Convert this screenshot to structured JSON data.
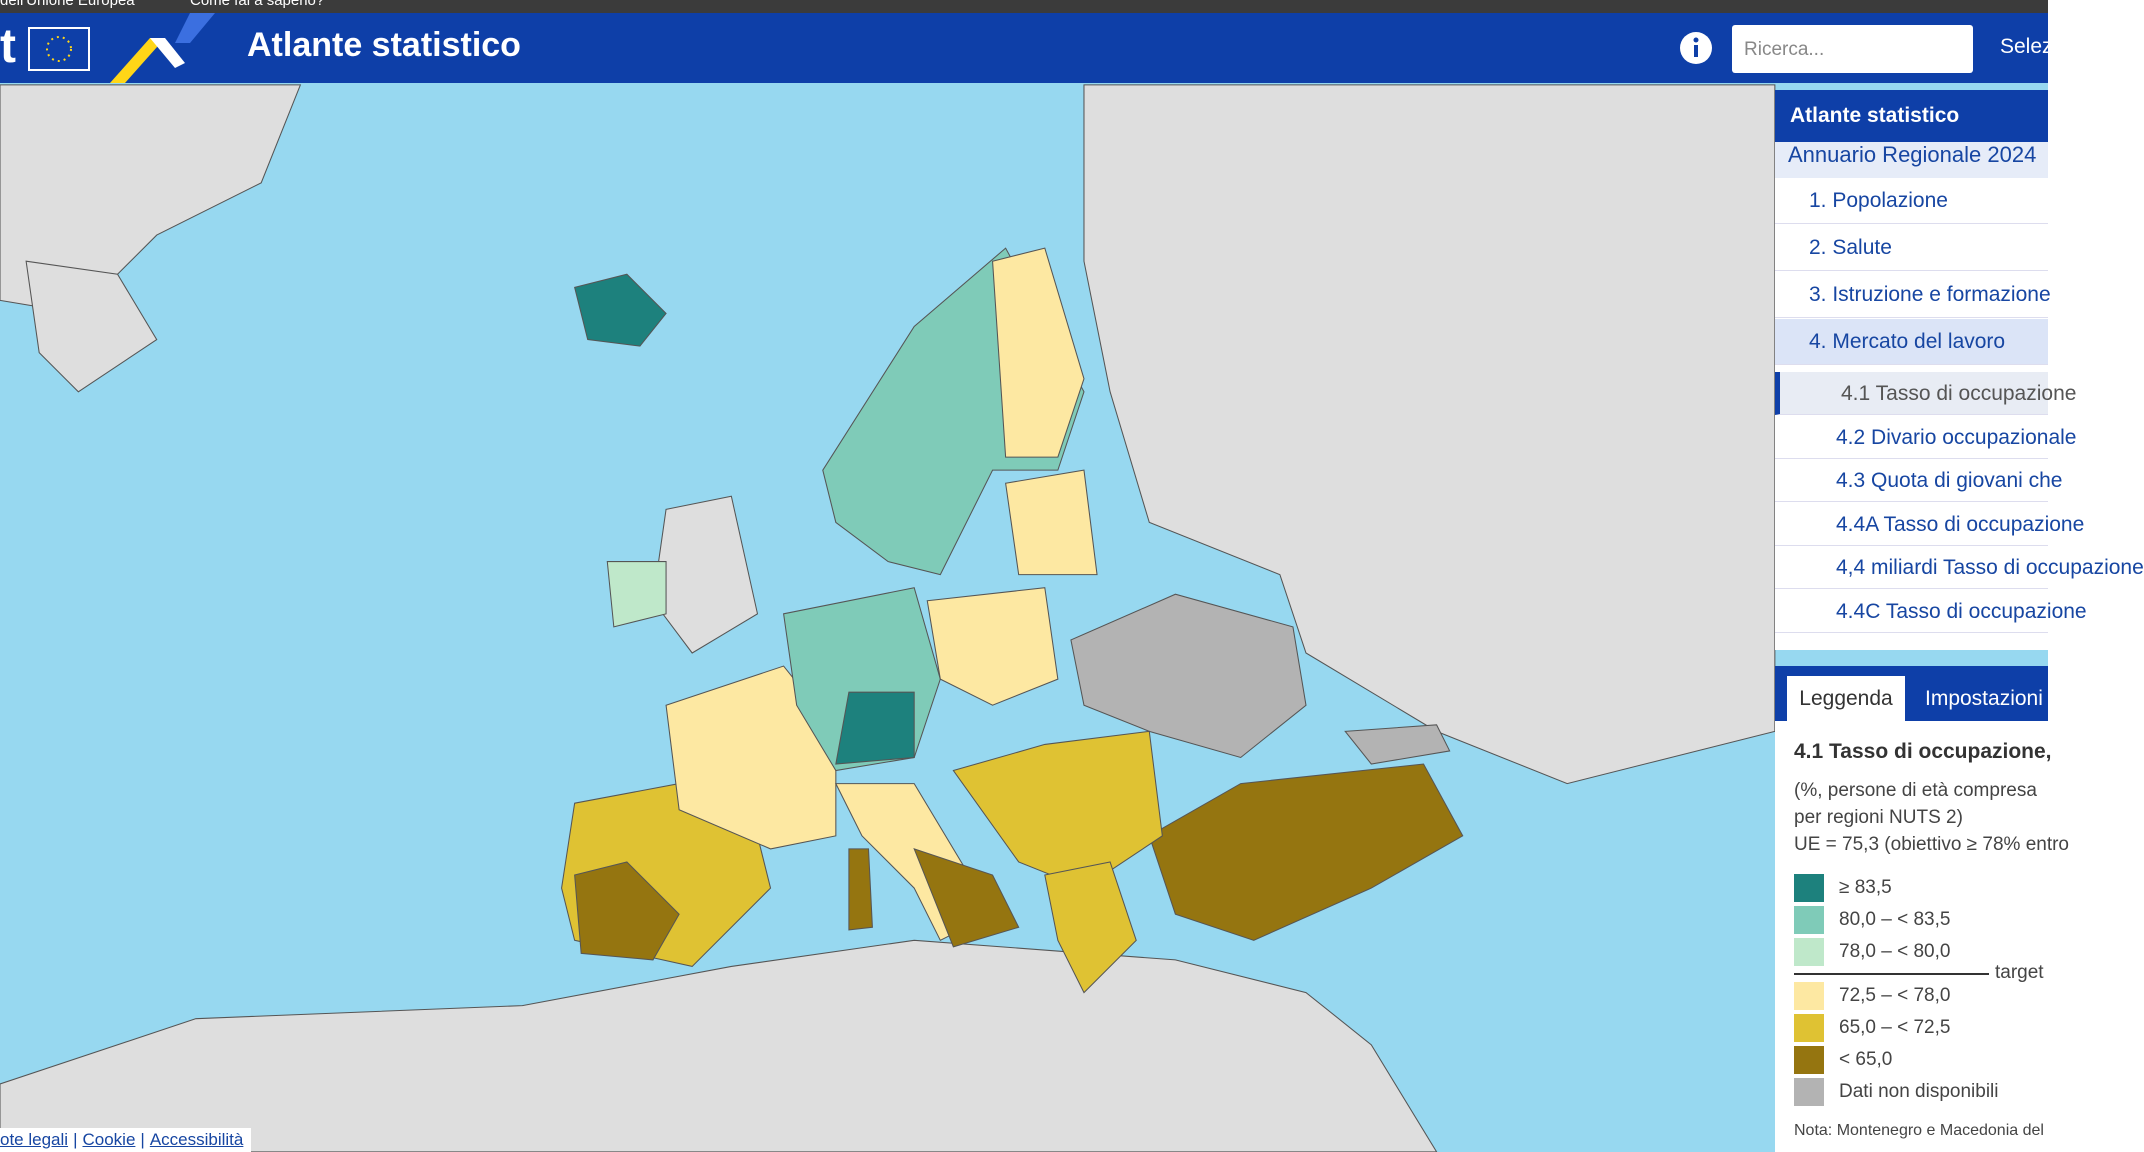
{
  "top_bar": {
    "text": "dell'Unione Europea",
    "link": "Come fai a saperlo?"
  },
  "header": {
    "logo_text": "t",
    "title": "Atlante statistico",
    "search_placeholder": "Ricerca...",
    "select": "Selez"
  },
  "menu": {
    "title": "Atlante statistico",
    "subtitle": "Annuario Regionale 2024",
    "items": [
      "1. Popolazione",
      "2. Salute",
      "3. Istruzione e formazione",
      "4. Mercato del lavoro"
    ],
    "subitems": [
      "4.1 Tasso di occupazione",
      "4.2 Divario occupazionale",
      "4.3 Quota di giovani che",
      "4.4A Tasso di occupazione",
      "4,4 miliardi Tasso di occupazione",
      "4.4C Tasso di occupazione"
    ]
  },
  "legend_panel": {
    "tabs": [
      "Leggenda",
      "Impostazioni"
    ],
    "title": "4.1 Tasso di occupazione,",
    "description": [
      "(%, persone di età compresa",
      "per regioni NUTS 2)",
      "UE = 75,3 (obiettivo ≥ 78% entro"
    ],
    "classes": [
      {
        "label": "≥ 83,5",
        "color": "#1d817d"
      },
      {
        "label": "80,0 – < 83,5",
        "color": "#7fcbb8"
      },
      {
        "label": "78,0 – < 80,0",
        "color": "#bfe8ca"
      },
      {
        "label": "72,5 – < 78,0",
        "color": "#fde8a2"
      },
      {
        "label": "65,0 – < 72,5",
        "color": "#dfc233"
      },
      {
        "label": "< 65,0",
        "color": "#957510"
      },
      {
        "label": "Dati non disponibili",
        "color": "#b3b3b3"
      }
    ],
    "target_label": "target",
    "note": "Nota: Montenegro e Macedonia del"
  },
  "footer": {
    "links": [
      "ote legali",
      "Cookie",
      "Accessibilità"
    ],
    "separator": "|"
  }
}
